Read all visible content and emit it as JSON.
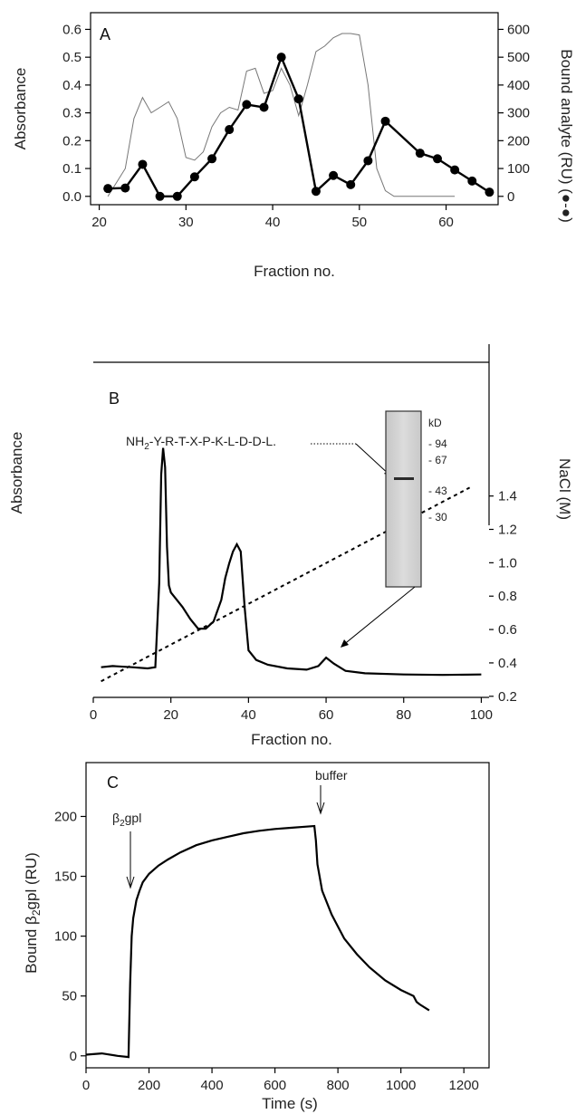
{
  "chart_data": [
    {
      "panel_label": "A",
      "type": "line",
      "xlabel": "Fraction no.",
      "ylabel": "Absorbance",
      "y2label": "Bound analyte  (RU) (●-●)",
      "xlim": [
        19,
        66
      ],
      "ylim": [
        -0.03,
        0.66
      ],
      "y2lim": [
        -30,
        660
      ],
      "xticks": [
        20,
        30,
        40,
        50,
        60
      ],
      "yticks": [
        0.0,
        0.1,
        0.2,
        0.3,
        0.4,
        0.5,
        0.6
      ],
      "ytick_labels": [
        "0.0",
        "0.1",
        "0.2",
        "0.3",
        "0.4",
        "0.5",
        "0.6"
      ],
      "y2ticks": [
        0,
        100,
        200,
        300,
        400,
        500,
        600
      ],
      "series": [
        {
          "axis": "left",
          "style": "thin-line",
          "x": [
            21,
            23,
            24,
            25,
            26,
            27,
            28,
            29,
            30,
            31,
            32,
            33,
            34,
            35,
            36,
            37,
            38,
            39,
            40,
            41,
            42,
            43,
            44,
            45,
            46,
            47,
            48,
            49,
            50,
            51,
            52,
            53,
            54,
            55,
            56,
            57,
            58,
            59,
            60,
            61
          ],
          "y": [
            0.0,
            0.1,
            0.28,
            0.355,
            0.3,
            0.32,
            0.34,
            0.28,
            0.14,
            0.13,
            0.16,
            0.25,
            0.3,
            0.32,
            0.31,
            0.45,
            0.46,
            0.37,
            0.38,
            0.46,
            0.4,
            0.29,
            0.4,
            0.52,
            0.54,
            0.57,
            0.585,
            0.585,
            0.58,
            0.4,
            0.1,
            0.02,
            0.0,
            0.0,
            0.0,
            0.0,
            0.0,
            0.0,
            0.0,
            0.0
          ]
        },
        {
          "axis": "right",
          "style": "thick-line-markers",
          "x": [
            21,
            23,
            25,
            27,
            29,
            31,
            33,
            35,
            37,
            39,
            41,
            43,
            45,
            47,
            49,
            51,
            53,
            57,
            59,
            61,
            63,
            65
          ],
          "y": [
            28,
            30,
            115,
            0,
            0,
            70,
            135,
            240,
            330,
            320,
            500,
            350,
            18,
            75,
            42,
            128,
            270,
            155,
            135,
            95,
            55,
            15
          ]
        }
      ]
    },
    {
      "panel_label": "B",
      "type": "line",
      "xlabel": "Fraction no.",
      "ylabel": "Absorbance",
      "y2label": "NaCl (M)",
      "xlim": [
        0,
        102
      ],
      "y2lim": [
        0.15,
        1.55
      ],
      "xticks": [
        0,
        20,
        40,
        60,
        80,
        100
      ],
      "y2ticks": [
        0.2,
        0.4,
        0.6,
        0.8,
        1.0,
        1.2,
        1.4
      ],
      "y2tick_labels": [
        "0.2",
        "0.4",
        "0.6",
        "0.8",
        "1.0",
        "1.2",
        "1.4"
      ],
      "sequence_prefix": "NH",
      "sequence_subscript": "2",
      "sequence_rest": "-Y-R-T-X-P-K-L-D-D-L.",
      "gel_unit": "kD",
      "gel_markers": [
        "- 94",
        "- 67",
        "- 43",
        "- 30"
      ],
      "series": [
        {
          "style": "thick-line",
          "axis": "arbitrary",
          "x": [
            2,
            5,
            10,
            14,
            16,
            17,
            17.5,
            18,
            18.5,
            19,
            19.5,
            20,
            21,
            23,
            25,
            27,
            29,
            31,
            33,
            34,
            35,
            36,
            37,
            38,
            39,
            40,
            42,
            45,
            50,
            55,
            58,
            60,
            62,
            65,
            70,
            80,
            90,
            100
          ],
          "y": [
            0.05,
            0.055,
            0.05,
            0.045,
            0.05,
            0.4,
            0.85,
            0.96,
            0.88,
            0.55,
            0.39,
            0.36,
            0.34,
            0.3,
            0.25,
            0.21,
            0.21,
            0.24,
            0.33,
            0.42,
            0.48,
            0.53,
            0.56,
            0.53,
            0.3,
            0.12,
            0.08,
            0.06,
            0.045,
            0.04,
            0.055,
            0.09,
            0.065,
            0.035,
            0.025,
            0.02,
            0.018,
            0.02
          ]
        },
        {
          "style": "dotted-line",
          "axis": "right",
          "x": [
            2,
            97
          ],
          "y": [
            0.29,
            1.45
          ]
        }
      ]
    },
    {
      "panel_label": "C",
      "type": "line",
      "xlabel": "Time (s)",
      "ylabel_prefix": "Bound β",
      "ylabel_subscript": "2",
      "ylabel_suffix": "gpl (RU)",
      "xlim": [
        0,
        1280
      ],
      "ylim": [
        -10,
        245
      ],
      "xticks": [
        0,
        200,
        400,
        600,
        800,
        1000,
        1200
      ],
      "yticks": [
        0,
        50,
        100,
        150,
        200
      ],
      "annotation_inject_prefix": "β",
      "annotation_inject_subscript": "2",
      "annotation_inject_suffix": "gpl",
      "annotation_buffer": "buffer",
      "series": [
        {
          "style": "thick-line",
          "x": [
            0,
            50,
            100,
            135,
            140,
            145,
            150,
            160,
            170,
            180,
            200,
            230,
            260,
            300,
            350,
            400,
            450,
            500,
            550,
            600,
            650,
            700,
            725,
            730,
            735,
            750,
            780,
            820,
            860,
            900,
            950,
            1000,
            1040,
            1050,
            1060,
            1090
          ],
          "y": [
            1,
            2,
            0,
            -1,
            60,
            100,
            115,
            130,
            138,
            145,
            152,
            159,
            164,
            170,
            176,
            180,
            183,
            186,
            188,
            189.5,
            190.5,
            191.5,
            192,
            180,
            160,
            138,
            118,
            98,
            85,
            74,
            63,
            55,
            50,
            45,
            43,
            38
          ]
        }
      ]
    }
  ]
}
